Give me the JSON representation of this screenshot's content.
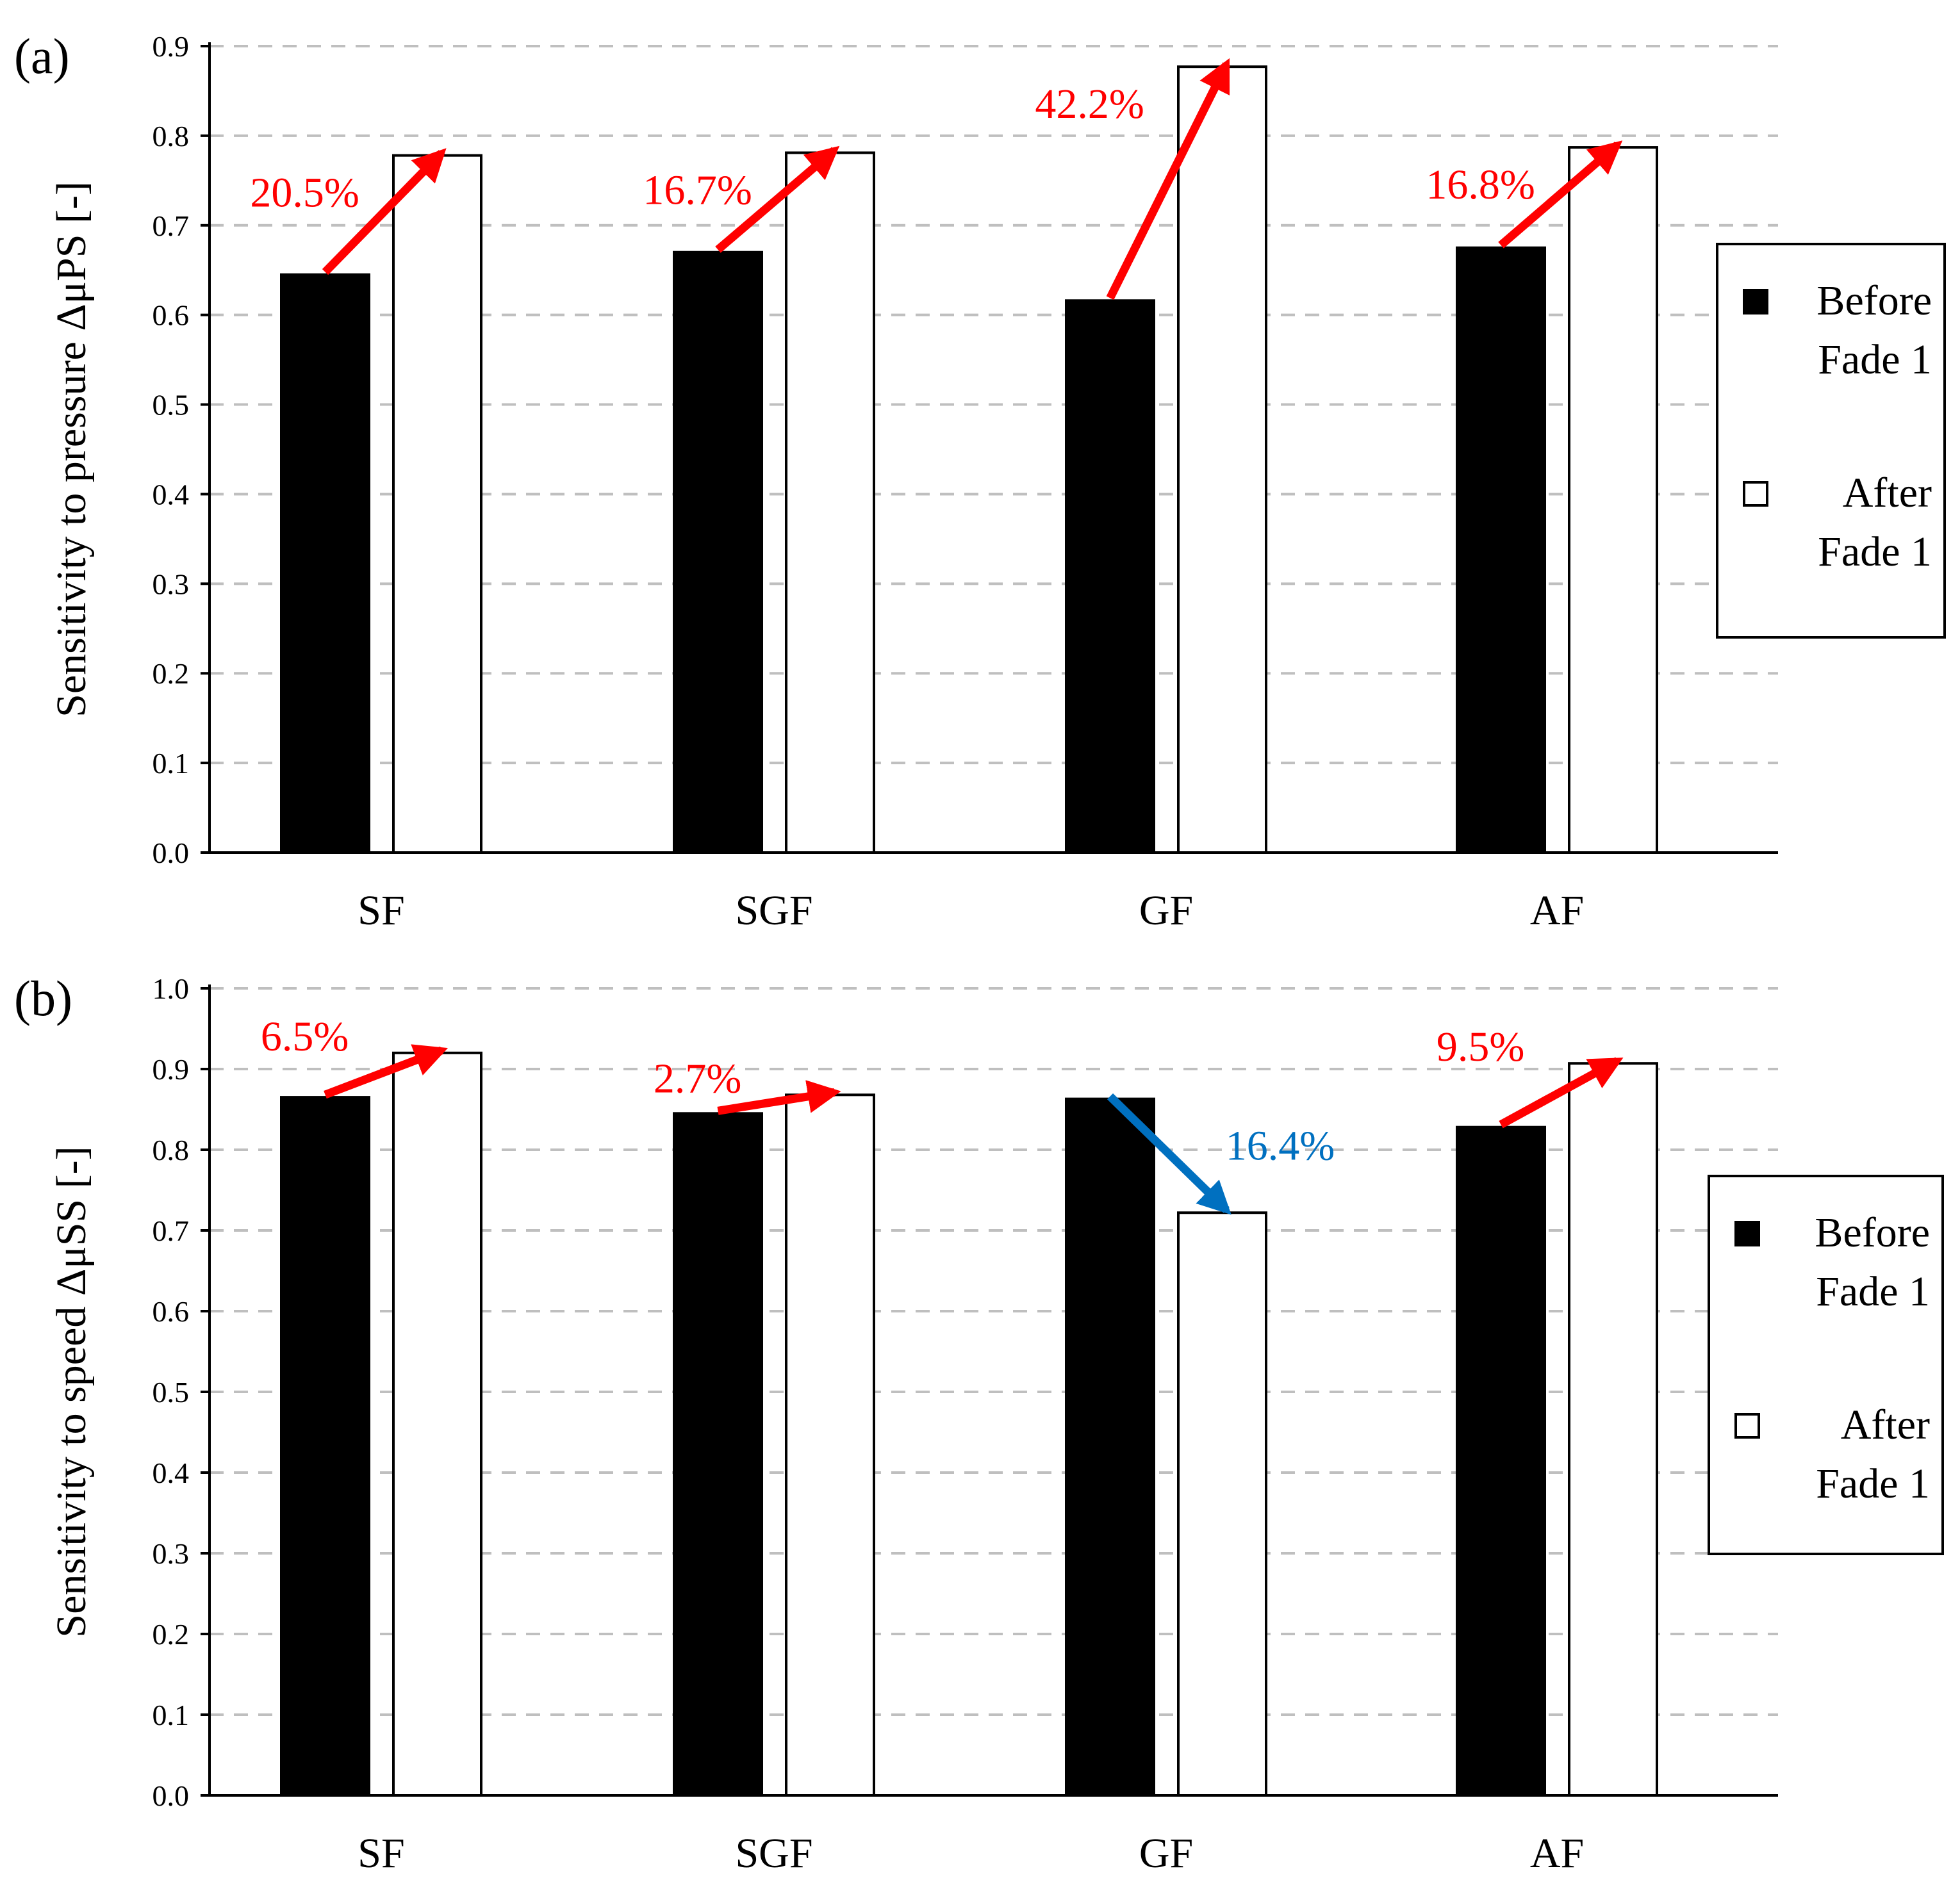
{
  "colors": {
    "before": "#000000",
    "after": "#ffffff",
    "increase_arrow": "#ff0000",
    "decrease_arrow": "#0070c0",
    "grid": "#bfbfbf"
  },
  "chart_data": [
    {
      "panel_label": "(a)",
      "type": "bar",
      "ylabel": "Sensitivity to pressure ΔμPS [-]",
      "ylim": [
        0,
        0.9
      ],
      "ytick_step": 0.1,
      "yticks": [
        "0.0",
        "0.1",
        "0.2",
        "0.3",
        "0.4",
        "0.5",
        "0.6",
        "0.7",
        "0.8",
        "0.9"
      ],
      "grid": true,
      "categories": [
        "SF",
        "SGF",
        "GF",
        "AF"
      ],
      "series": [
        {
          "name": "Before Fade 1",
          "values": [
            0.645,
            0.67,
            0.616,
            0.675
          ]
        },
        {
          "name": "After Fade 1",
          "values": [
            0.778,
            0.781,
            0.877,
            0.787
          ]
        }
      ],
      "legend": {
        "position": "right",
        "entries": [
          {
            "lines": [
              "Before",
              "Fade 1"
            ],
            "swatch": "filled"
          },
          {
            "lines": [
              "After",
              "Fade 1"
            ],
            "swatch": "outline"
          }
        ]
      },
      "annotations": [
        {
          "category": "SF",
          "text": "20.5%",
          "direction": "up"
        },
        {
          "category": "SGF",
          "text": "16.7%",
          "direction": "up"
        },
        {
          "category": "GF",
          "text": "42.2%",
          "direction": "up"
        },
        {
          "category": "AF",
          "text": "16.8%",
          "direction": "up"
        }
      ]
    },
    {
      "panel_label": "(b)",
      "type": "bar",
      "ylabel": "Sensitivity to speed ΔμSS [-]",
      "ylim": [
        0,
        1.0
      ],
      "ytick_step": 0.1,
      "yticks": [
        "0.0",
        "0.1",
        "0.2",
        "0.3",
        "0.4",
        "0.5",
        "0.6",
        "0.7",
        "0.8",
        "0.9",
        "1.0"
      ],
      "grid": true,
      "categories": [
        "SF",
        "SGF",
        "GF",
        "AF"
      ],
      "series": [
        {
          "name": "Before Fade 1",
          "values": [
            0.865,
            0.845,
            0.863,
            0.828
          ]
        },
        {
          "name": "After Fade 1",
          "values": [
            0.92,
            0.868,
            0.722,
            0.907
          ]
        }
      ],
      "legend": {
        "position": "right",
        "entries": [
          {
            "lines": [
              "Before",
              "Fade 1"
            ],
            "swatch": "filled"
          },
          {
            "lines": [
              "After",
              "Fade 1"
            ],
            "swatch": "outline"
          }
        ]
      },
      "annotations": [
        {
          "category": "SF",
          "text": "6.5%",
          "direction": "up"
        },
        {
          "category": "SGF",
          "text": "2.7%",
          "direction": "up"
        },
        {
          "category": "GF",
          "text": "16.4%",
          "direction": "down"
        },
        {
          "category": "AF",
          "text": "9.5%",
          "direction": "up"
        }
      ]
    }
  ]
}
